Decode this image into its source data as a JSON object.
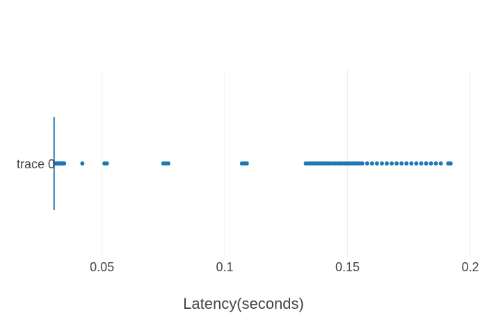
{
  "chart_data": {
    "type": "box",
    "orientation": "horizontal",
    "xlabel": "Latency(seconds)",
    "x_range": [
      0.03,
      0.2
    ],
    "x_ticks": [
      0.05,
      0.1,
      0.15,
      0.2
    ],
    "x_tick_labels": [
      "0.05",
      "0.1",
      "0.15",
      "0.2"
    ],
    "grid": true,
    "series": [
      {
        "name": "trace 0",
        "color": "#1f77b4",
        "box": {
          "q1": 0.0305,
          "median": 0.0305,
          "q3": 0.0305,
          "lower_fence": 0.0305,
          "upper_fence": 0.0305
        },
        "outliers": [
          0.0308,
          0.0312,
          0.0316,
          0.032,
          0.0324,
          0.0328,
          0.0332,
          0.0336,
          0.034,
          0.0346,
          0.042,
          0.051,
          0.052,
          0.075,
          0.076,
          0.077,
          0.107,
          0.108,
          0.109,
          0.133,
          0.134,
          0.135,
          0.136,
          0.137,
          0.138,
          0.139,
          0.14,
          0.141,
          0.142,
          0.143,
          0.144,
          0.145,
          0.146,
          0.147,
          0.148,
          0.149,
          0.15,
          0.151,
          0.152,
          0.153,
          0.154,
          0.155,
          0.156,
          0.158,
          0.16,
          0.162,
          0.164,
          0.166,
          0.168,
          0.17,
          0.172,
          0.174,
          0.176,
          0.178,
          0.18,
          0.182,
          0.184,
          0.186,
          0.188,
          0.191,
          0.192
        ]
      }
    ]
  }
}
